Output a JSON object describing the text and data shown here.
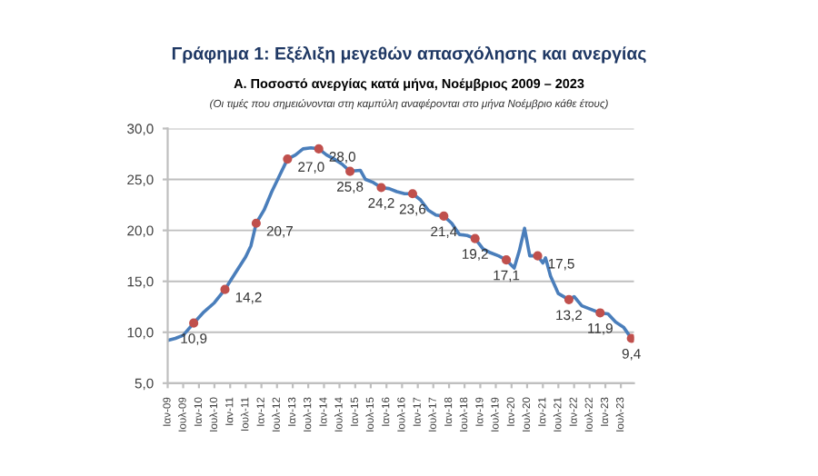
{
  "chart_data": {
    "type": "line",
    "title": "Γράφημα 1: Εξέλιξη μεγεθών απασχόλησης και ανεργίας",
    "subtitle": "Α. Ποσοστό ανεργίας κατά μήνα, Νοέμβριος 2009 – 2023",
    "annotations": [
      "(Οι τιμές που σημειώνονται στη καμπύλη αναφέρονται στο μήνα Νοέμβριο κάθε έτους)"
    ],
    "series": [
      {
        "color": "#4a7ebb",
        "x": [
          "2009-01",
          "2009-04",
          "2009-07",
          "2009-11",
          "2010-03",
          "2010-07",
          "2010-11",
          "2011-03",
          "2011-07",
          "2011-09",
          "2011-11",
          "2012-02",
          "2012-05",
          "2012-08",
          "2012-11",
          "2013-02",
          "2013-05",
          "2013-08",
          "2013-11",
          "2014-02",
          "2014-05",
          "2014-08",
          "2014-11",
          "2015-03",
          "2015-05",
          "2015-08",
          "2015-11",
          "2016-02",
          "2016-05",
          "2016-08",
          "2016-11",
          "2017-02",
          "2017-05",
          "2017-08",
          "2017-11",
          "2018-02",
          "2018-05",
          "2018-08",
          "2018-11",
          "2019-02",
          "2019-05",
          "2019-08",
          "2019-11",
          "2020-02",
          "2020-04",
          "2020-06",
          "2020-08",
          "2020-11",
          "2021-01",
          "2021-02",
          "2021-04",
          "2021-07",
          "2021-11",
          "2022-01",
          "2022-04",
          "2022-08",
          "2022-11",
          "2023-02",
          "2023-05",
          "2023-08",
          "2023-11"
        ],
        "values": [
          9.2,
          9.4,
          9.7,
          10.9,
          12.0,
          12.9,
          14.2,
          15.8,
          17.4,
          18.5,
          20.7,
          22.0,
          23.8,
          25.4,
          27.0,
          27.4,
          28.0,
          28.1,
          28.0,
          27.4,
          27.0,
          26.5,
          25.8,
          25.9,
          25.0,
          24.7,
          24.2,
          24.1,
          23.8,
          23.6,
          23.6,
          23.0,
          22.0,
          21.5,
          21.4,
          20.7,
          19.6,
          19.5,
          19.2,
          18.2,
          17.8,
          17.5,
          17.1,
          16.3,
          18.0,
          20.2,
          17.5,
          17.5,
          16.8,
          17.3,
          15.5,
          13.8,
          13.2,
          13.5,
          12.6,
          12.2,
          11.9,
          11.8,
          11.0,
          10.5,
          9.4
        ]
      },
      {
        "type": "scatter",
        "color": "#c0504d",
        "marker": "circle",
        "x": [
          "2009-11",
          "2010-11",
          "2011-11",
          "2012-11",
          "2013-11",
          "2014-11",
          "2015-11",
          "2016-11",
          "2017-11",
          "2018-11",
          "2019-11",
          "2020-11",
          "2021-11",
          "2022-11",
          "2023-11"
        ],
        "values": [
          10.9,
          14.2,
          20.7,
          27.0,
          28.0,
          25.8,
          24.2,
          23.6,
          21.4,
          19.2,
          17.1,
          17.5,
          13.2,
          11.9,
          9.4
        ],
        "value_labels": [
          "10,9",
          "14,2",
          "20,7",
          "27,0",
          "28,0",
          "25,8",
          "24,2",
          "23,6",
          "21,4",
          "19,2",
          "17,1",
          "17,5",
          "13,2",
          "11,9",
          "9,4"
        ]
      }
    ],
    "xlim": [
      "2009-01",
      "2023-12"
    ],
    "xticks": [
      {
        "value": "2009-01",
        "label": "Ιαν-09"
      },
      {
        "value": "2009-07",
        "label": "Ιουλ-09"
      },
      {
        "value": "2010-01",
        "label": "Ιαν-10"
      },
      {
        "value": "2010-07",
        "label": "Ιουλ-10"
      },
      {
        "value": "2011-01",
        "label": "Ιαν-11"
      },
      {
        "value": "2011-07",
        "label": "Ιουλ-11"
      },
      {
        "value": "2012-01",
        "label": "Ιαν-12"
      },
      {
        "value": "2012-07",
        "label": "Ιουλ-12"
      },
      {
        "value": "2013-01",
        "label": "Ιαν-13"
      },
      {
        "value": "2013-07",
        "label": "Ιουλ-13"
      },
      {
        "value": "2014-01",
        "label": "Ιαν-14"
      },
      {
        "value": "2014-07",
        "label": "Ιουλ-14"
      },
      {
        "value": "2015-01",
        "label": "Ιαν-15"
      },
      {
        "value": "2015-07",
        "label": "Ιουλ-15"
      },
      {
        "value": "2016-01",
        "label": "Ιαν-16"
      },
      {
        "value": "2016-07",
        "label": "Ιουλ-16"
      },
      {
        "value": "2017-01",
        "label": "Ιαν-17"
      },
      {
        "value": "2017-07",
        "label": "Ιουλ-17"
      },
      {
        "value": "2018-01",
        "label": "Ιαν-18"
      },
      {
        "value": "2018-07",
        "label": "Ιουλ-18"
      },
      {
        "value": "2019-01",
        "label": "Ιαν-19"
      },
      {
        "value": "2019-07",
        "label": "Ιουλ-19"
      },
      {
        "value": "2020-01",
        "label": "Ιαν-20"
      },
      {
        "value": "2020-07",
        "label": "Ιουλ-20"
      },
      {
        "value": "2021-01",
        "label": "Ιαν-21"
      },
      {
        "value": "2021-07",
        "label": "Ιουλ-21"
      },
      {
        "value": "2022-01",
        "label": "Ιαν-22"
      },
      {
        "value": "2022-07",
        "label": "Ιουλ-22"
      },
      {
        "value": "2023-01",
        "label": "Ιαν-23"
      },
      {
        "value": "2023-07",
        "label": "Ιουλ-23"
      }
    ],
    "ylim": [
      5,
      30
    ],
    "yticks": [
      {
        "value": 5,
        "label": "5,0"
      },
      {
        "value": 10,
        "label": "10,0"
      },
      {
        "value": 15,
        "label": "15,0"
      },
      {
        "value": 20,
        "label": "20,0"
      },
      {
        "value": 25,
        "label": "25,0"
      },
      {
        "value": 30,
        "label": "30,0"
      }
    ],
    "grid": "y"
  }
}
